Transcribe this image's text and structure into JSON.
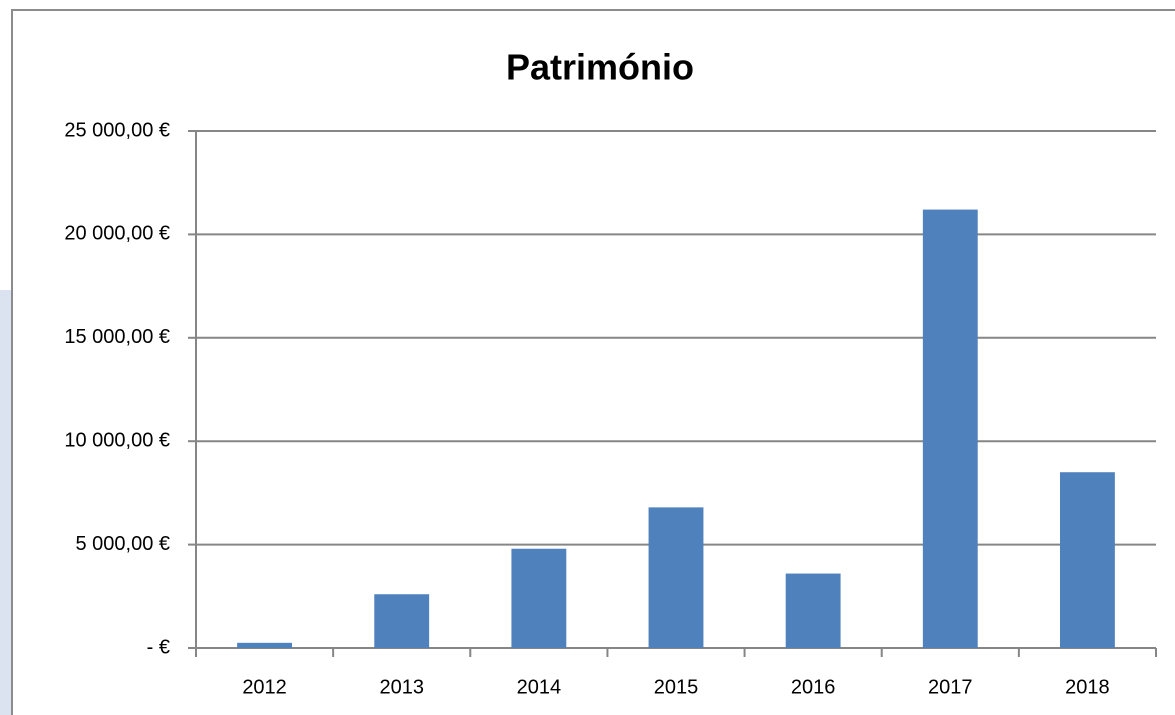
{
  "chart_data": {
    "type": "bar",
    "title": "Património",
    "categories": [
      "2012",
      "2013",
      "2014",
      "2015",
      "2016",
      "2017",
      "2018"
    ],
    "values": [
      250,
      2600,
      4800,
      6800,
      3600,
      21200,
      8500
    ],
    "color": "#4f81bd",
    "ylim": [
      0,
      25000
    ],
    "yticks": [
      {
        "value": 0,
        "label": "-  €"
      },
      {
        "value": 5000,
        "label": "5 000,00 €"
      },
      {
        "value": 10000,
        "label": "10 000,00 €"
      },
      {
        "value": 15000,
        "label": "15 000,00 €"
      },
      {
        "value": 20000,
        "label": "20 000,00 €"
      },
      {
        "value": 25000,
        "label": "25 000,00 €"
      }
    ],
    "grid": true
  }
}
